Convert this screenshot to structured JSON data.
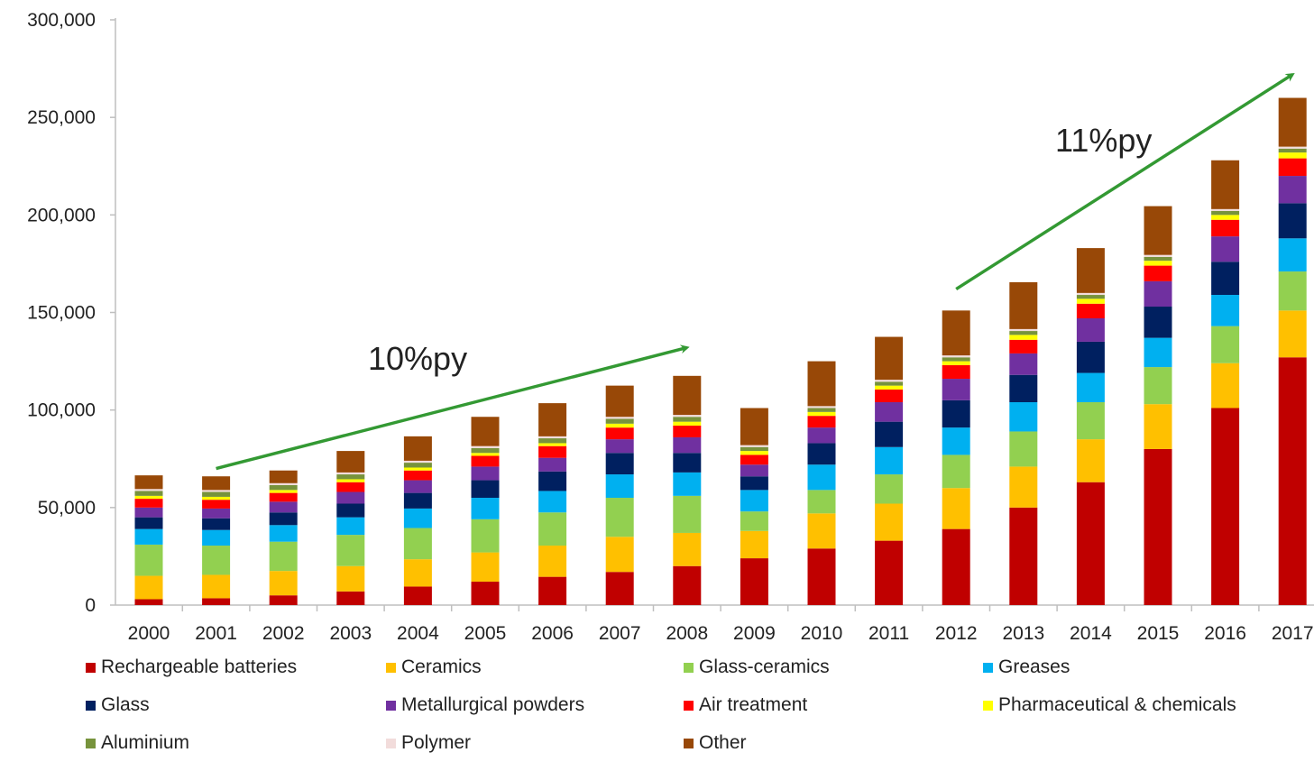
{
  "chart_data": {
    "type": "bar",
    "stacked": true,
    "categories": [
      "2000",
      "2001",
      "2002",
      "2003",
      "2004",
      "2005",
      "2006",
      "2007",
      "2008",
      "2009",
      "2010",
      "2011",
      "2012",
      "2013",
      "2014",
      "2015",
      "2016",
      "2017"
    ],
    "ylim": [
      0,
      300000
    ],
    "yticks": [
      0,
      50000,
      100000,
      150000,
      200000,
      250000,
      300000
    ],
    "ytick_labels": [
      "0",
      "50,000",
      "100,000",
      "150,000",
      "200,000",
      "250,000",
      "300,000"
    ],
    "grid": false,
    "legend_position": "bottom",
    "series": [
      {
        "name": "Rechargeable batteries",
        "color": "#c00000",
        "values": [
          3000,
          3500,
          5000,
          7000,
          9500,
          12000,
          14500,
          17000,
          20000,
          24000,
          29000,
          33000,
          39000,
          50000,
          63000,
          80000,
          101000,
          127000
        ]
      },
      {
        "name": "Ceramics",
        "color": "#ffc000",
        "values": [
          12000,
          12000,
          12500,
          13000,
          14000,
          15000,
          16000,
          18000,
          17000,
          14000,
          18000,
          19000,
          21000,
          21000,
          22000,
          23000,
          23000,
          24000
        ]
      },
      {
        "name": "Glass-ceramics",
        "color": "#92d050",
        "values": [
          16000,
          15000,
          15000,
          16000,
          16000,
          17000,
          17000,
          20000,
          19000,
          10000,
          12000,
          15000,
          17000,
          18000,
          19000,
          19000,
          19000,
          20000
        ]
      },
      {
        "name": "Greases",
        "color": "#00b0f0",
        "values": [
          8000,
          8000,
          8500,
          9000,
          10000,
          11000,
          11000,
          12000,
          12000,
          11000,
          13000,
          14000,
          14000,
          15000,
          15000,
          15000,
          16000,
          17000
        ]
      },
      {
        "name": "Glass",
        "color": "#002060",
        "values": [
          6000,
          6000,
          6500,
          7000,
          8000,
          9000,
          10000,
          11000,
          10000,
          7000,
          11000,
          13000,
          14000,
          14000,
          16000,
          16000,
          17000,
          18000
        ]
      },
      {
        "name": "Metallurgical powders",
        "color": "#7030a0",
        "values": [
          5000,
          5000,
          5500,
          6000,
          6500,
          7000,
          7000,
          7000,
          8000,
          6000,
          8000,
          10000,
          11000,
          11000,
          12000,
          13000,
          13000,
          14000
        ]
      },
      {
        "name": "Air treatment",
        "color": "#ff0000",
        "values": [
          4500,
          4500,
          4500,
          5000,
          5000,
          5500,
          6000,
          6000,
          6000,
          5000,
          6000,
          6500,
          7000,
          7000,
          7500,
          8000,
          8500,
          9000
        ]
      },
      {
        "name": "Pharmaceutical & chemicals",
        "color": "#ffff00",
        "values": [
          1500,
          1500,
          1500,
          1500,
          1500,
          1500,
          1500,
          2000,
          2000,
          2000,
          2000,
          2000,
          2000,
          2500,
          2500,
          2500,
          2500,
          3000
        ]
      },
      {
        "name": "Aluminium",
        "color": "#77933c",
        "values": [
          2500,
          2500,
          2500,
          2500,
          2500,
          2500,
          2500,
          2500,
          2500,
          2000,
          2000,
          2000,
          2000,
          2000,
          2000,
          2000,
          2000,
          2000
        ]
      },
      {
        "name": "Polymer",
        "color": "#f2dcdb",
        "values": [
          1000,
          1000,
          1000,
          1000,
          1000,
          1000,
          1000,
          1000,
          1000,
          1000,
          1000,
          1000,
          1000,
          1000,
          1000,
          1000,
          1000,
          1000
        ]
      },
      {
        "name": "Other",
        "color": "#984807",
        "values": [
          7000,
          7000,
          6500,
          11000,
          12500,
          15000,
          17000,
          16000,
          20000,
          19000,
          23000,
          22000,
          23000,
          24000,
          23000,
          25000,
          25000,
          25000
        ]
      }
    ],
    "annotations": [
      {
        "text": "10%py",
        "color": "#339933",
        "arrow_from": {
          "x": "2001",
          "y": 70000
        },
        "arrow_to": {
          "x": "2008",
          "y": 132000
        }
      },
      {
        "text": "11%py",
        "color": "#339933",
        "arrow_from": {
          "x": "2012",
          "y": 162000
        },
        "arrow_to": {
          "x": "2017",
          "y": 272000
        }
      }
    ]
  }
}
